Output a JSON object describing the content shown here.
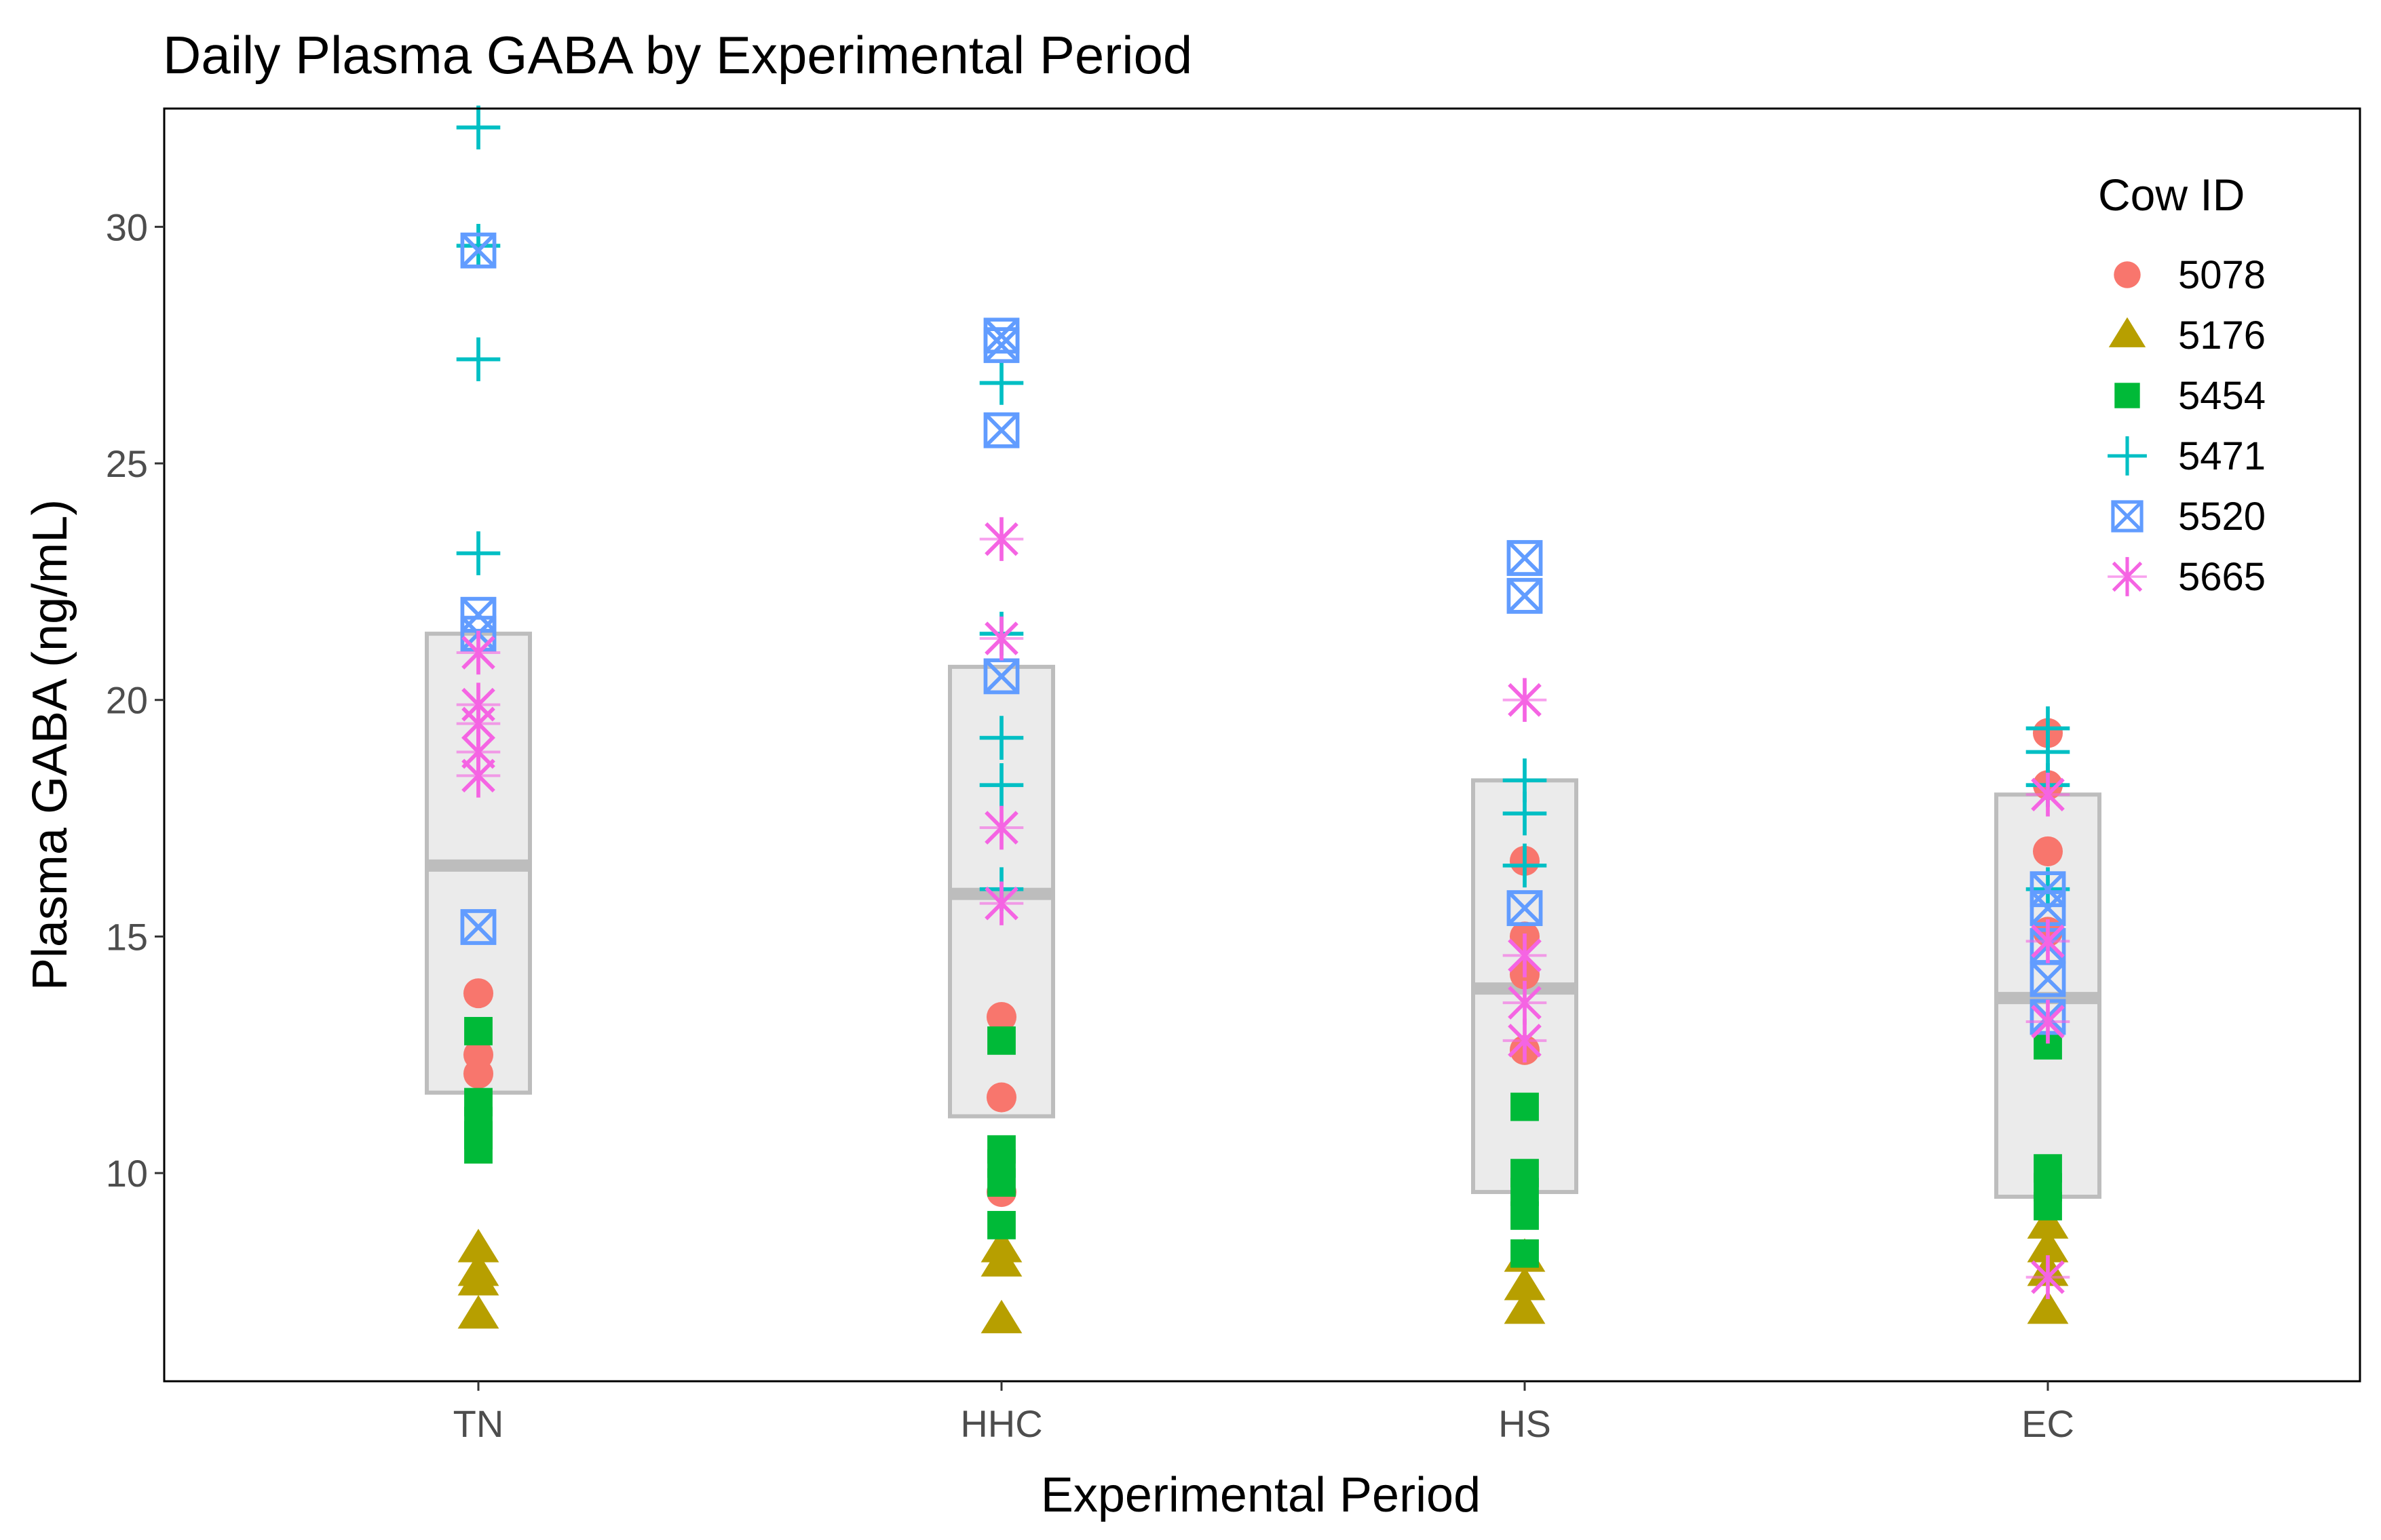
{
  "chart_data": {
    "type": "scatter",
    "title": "Daily Plasma GABA by Experimental Period",
    "xlabel": "Experimental Period",
    "ylabel": "Plasma GABA (ng/mL)",
    "categories": [
      "TN",
      "HHC",
      "HS",
      "EC"
    ],
    "ylim": [
      5.6,
      32.5
    ],
    "yticks": [
      10,
      15,
      20,
      25,
      30
    ],
    "grid": false,
    "legend": {
      "title": "Cow ID",
      "position": "right-inside",
      "entries": [
        {
          "name": "5078",
          "shape": "circle",
          "color": "#F8766D"
        },
        {
          "name": "5176",
          "shape": "triangle",
          "color": "#B79F00"
        },
        {
          "name": "5454",
          "shape": "square",
          "color": "#00BA38"
        },
        {
          "name": "5471",
          "shape": "plus",
          "color": "#00BFC4"
        },
        {
          "name": "5520",
          "shape": "boxx",
          "color": "#619CFF"
        },
        {
          "name": "5665",
          "shape": "asterisk",
          "color": "#F564E3"
        }
      ]
    },
    "boxes": [
      {
        "category": "TN",
        "lower": 11.7,
        "median": 16.5,
        "upper": 21.4
      },
      {
        "category": "HHC",
        "lower": 11.2,
        "median": 15.9,
        "upper": 20.7
      },
      {
        "category": "HS",
        "lower": 9.6,
        "median": 13.9,
        "upper": 18.3
      },
      {
        "category": "EC",
        "lower": 9.5,
        "median": 13.7,
        "upper": 18.0
      }
    ],
    "series": [
      {
        "name": "5078",
        "points": [
          {
            "x": "TN",
            "y": 13.8
          },
          {
            "x": "TN",
            "y": 12.5
          },
          {
            "x": "TN",
            "y": 12.1
          },
          {
            "x": "HHC",
            "y": 13.3
          },
          {
            "x": "HHC",
            "y": 11.6
          },
          {
            "x": "HHC",
            "y": 9.6
          },
          {
            "x": "HS",
            "y": 16.6
          },
          {
            "x": "HS",
            "y": 15.0
          },
          {
            "x": "HS",
            "y": 14.2
          },
          {
            "x": "HS",
            "y": 12.6
          },
          {
            "x": "EC",
            "y": 19.3
          },
          {
            "x": "EC",
            "y": 18.2
          },
          {
            "x": "EC",
            "y": 16.8
          },
          {
            "x": "EC",
            "y": 15.1
          }
        ]
      },
      {
        "name": "5176",
        "points": [
          {
            "x": "TN",
            "y": 8.4
          },
          {
            "x": "TN",
            "y": 7.9
          },
          {
            "x": "TN",
            "y": 7.7
          },
          {
            "x": "TN",
            "y": 7.0
          },
          {
            "x": "HHC",
            "y": 8.4
          },
          {
            "x": "HHC",
            "y": 8.1
          },
          {
            "x": "HHC",
            "y": 6.9
          },
          {
            "x": "HS",
            "y": 8.2
          },
          {
            "x": "HS",
            "y": 7.6
          },
          {
            "x": "HS",
            "y": 7.1
          },
          {
            "x": "EC",
            "y": 8.9
          },
          {
            "x": "EC",
            "y": 8.4
          },
          {
            "x": "EC",
            "y": 7.9
          },
          {
            "x": "EC",
            "y": 7.1
          }
        ]
      },
      {
        "name": "5454",
        "points": [
          {
            "x": "TN",
            "y": 13.0
          },
          {
            "x": "TN",
            "y": 11.5
          },
          {
            "x": "TN",
            "y": 11.1
          },
          {
            "x": "TN",
            "y": 10.8
          },
          {
            "x": "TN",
            "y": 10.5
          },
          {
            "x": "HHC",
            "y": 12.8
          },
          {
            "x": "HHC",
            "y": 10.5
          },
          {
            "x": "HHC",
            "y": 10.2
          },
          {
            "x": "HHC",
            "y": 9.8
          },
          {
            "x": "HHC",
            "y": 8.9
          },
          {
            "x": "HS",
            "y": 11.4
          },
          {
            "x": "HS",
            "y": 10.0
          },
          {
            "x": "HS",
            "y": 9.6
          },
          {
            "x": "HS",
            "y": 9.1
          },
          {
            "x": "HS",
            "y": 8.3
          },
          {
            "x": "EC",
            "y": 12.7
          },
          {
            "x": "EC",
            "y": 10.1
          },
          {
            "x": "EC",
            "y": 9.7
          },
          {
            "x": "EC",
            "y": 9.3
          }
        ]
      },
      {
        "name": "5471",
        "points": [
          {
            "x": "TN",
            "y": 32.1
          },
          {
            "x": "TN",
            "y": 29.6
          },
          {
            "x": "TN",
            "y": 27.2
          },
          {
            "x": "TN",
            "y": 23.1
          },
          {
            "x": "HHC",
            "y": 26.7
          },
          {
            "x": "HHC",
            "y": 21.4
          },
          {
            "x": "HHC",
            "y": 19.2
          },
          {
            "x": "HHC",
            "y": 18.2
          },
          {
            "x": "HHC",
            "y": 16.0
          },
          {
            "x": "HS",
            "y": 18.3
          },
          {
            "x": "HS",
            "y": 17.6
          },
          {
            "x": "HS",
            "y": 16.5
          },
          {
            "x": "EC",
            "y": 19.4
          },
          {
            "x": "EC",
            "y": 18.9
          },
          {
            "x": "EC",
            "y": 18.2
          },
          {
            "x": "EC",
            "y": 16.0
          }
        ]
      },
      {
        "name": "5520",
        "points": [
          {
            "x": "TN",
            "y": 29.5
          },
          {
            "x": "TN",
            "y": 21.8
          },
          {
            "x": "TN",
            "y": 21.4
          },
          {
            "x": "TN",
            "y": 15.2
          },
          {
            "x": "HHC",
            "y": 27.7
          },
          {
            "x": "HHC",
            "y": 27.5
          },
          {
            "x": "HHC",
            "y": 25.7
          },
          {
            "x": "HHC",
            "y": 20.5
          },
          {
            "x": "HS",
            "y": 23.0
          },
          {
            "x": "HS",
            "y": 22.2
          },
          {
            "x": "HS",
            "y": 15.6
          },
          {
            "x": "EC",
            "y": 16.0
          },
          {
            "x": "EC",
            "y": 15.6
          },
          {
            "x": "EC",
            "y": 14.8
          },
          {
            "x": "EC",
            "y": 14.1
          },
          {
            "x": "EC",
            "y": 13.3
          }
        ]
      },
      {
        "name": "5665",
        "points": [
          {
            "x": "TN",
            "y": 21.0
          },
          {
            "x": "TN",
            "y": 19.9
          },
          {
            "x": "TN",
            "y": 19.5
          },
          {
            "x": "TN",
            "y": 18.9
          },
          {
            "x": "TN",
            "y": 18.4
          },
          {
            "x": "HHC",
            "y": 23.4
          },
          {
            "x": "HHC",
            "y": 21.3
          },
          {
            "x": "HHC",
            "y": 17.3
          },
          {
            "x": "HHC",
            "y": 15.7
          },
          {
            "x": "HS",
            "y": 20.0
          },
          {
            "x": "HS",
            "y": 14.6
          },
          {
            "x": "HS",
            "y": 13.6
          },
          {
            "x": "HS",
            "y": 12.8
          },
          {
            "x": "EC",
            "y": 18.0
          },
          {
            "x": "EC",
            "y": 14.9
          },
          {
            "x": "EC",
            "y": 13.2
          },
          {
            "x": "EC",
            "y": 7.8
          }
        ]
      }
    ]
  }
}
